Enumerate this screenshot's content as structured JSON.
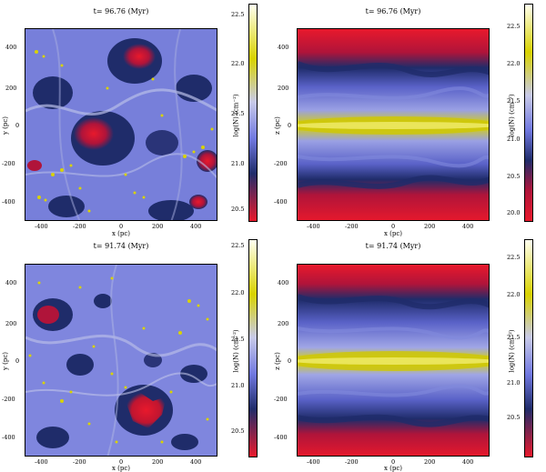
{
  "panels": [
    {
      "title": "t= 96.76 (Myr)",
      "xlabel": "x (pc)",
      "ylabel": "y (pc)",
      "xticks": [
        "-400",
        "-200",
        "0",
        "200",
        "400"
      ],
      "yticks": [
        "400",
        "200",
        "0",
        "-200",
        "-400"
      ],
      "cbar_label": "log(N) (cm⁻²)",
      "cbar_ticks": [
        "22.5",
        "22.0",
        "21.5",
        "21.0",
        "20.5"
      ]
    },
    {
      "title": "t= 96.76 (Myr)",
      "xlabel": "x (pc)",
      "ylabel": "z (pc)",
      "xticks": [
        "-400",
        "-200",
        "0",
        "200",
        "400"
      ],
      "yticks": [
        "400",
        "200",
        "0",
        "-200",
        "-400"
      ],
      "cbar_label": "log(N) (cm⁻²)",
      "cbar_ticks": [
        "22.5",
        "22.0",
        "21.5",
        "21.0",
        "20.5",
        "20.0"
      ]
    },
    {
      "title": "t= 91.74 (Myr)",
      "xlabel": "x (pc)",
      "ylabel": "y (pc)",
      "xticks": [
        "-400",
        "-200",
        "0",
        "200",
        "400"
      ],
      "yticks": [
        "400",
        "200",
        "0",
        "-200",
        "-400"
      ],
      "cbar_label": "log(N) (cm⁻²)",
      "cbar_ticks": [
        "22.5",
        "22.0",
        "21.5",
        "21.0",
        "20.5"
      ]
    },
    {
      "title": "t= 91.74 (Myr)",
      "xlabel": "x (pc)",
      "ylabel": "z (pc)",
      "xticks": [
        "-400",
        "-200",
        "0",
        "200",
        "400"
      ],
      "yticks": [
        "400",
        "200",
        "0",
        "-200",
        "-400"
      ],
      "cbar_label": "log(N) (cm⁻²)",
      "cbar_ticks": [
        "22.5",
        "22.0",
        "21.5",
        "21.0",
        "20.5"
      ]
    }
  ],
  "colors": {
    "low": "#e8192c",
    "dark": "#1f2c6a",
    "mid": "#7078e0",
    "light": "#c8cae8",
    "high": "#d8d200",
    "top": "#fffff0"
  }
}
